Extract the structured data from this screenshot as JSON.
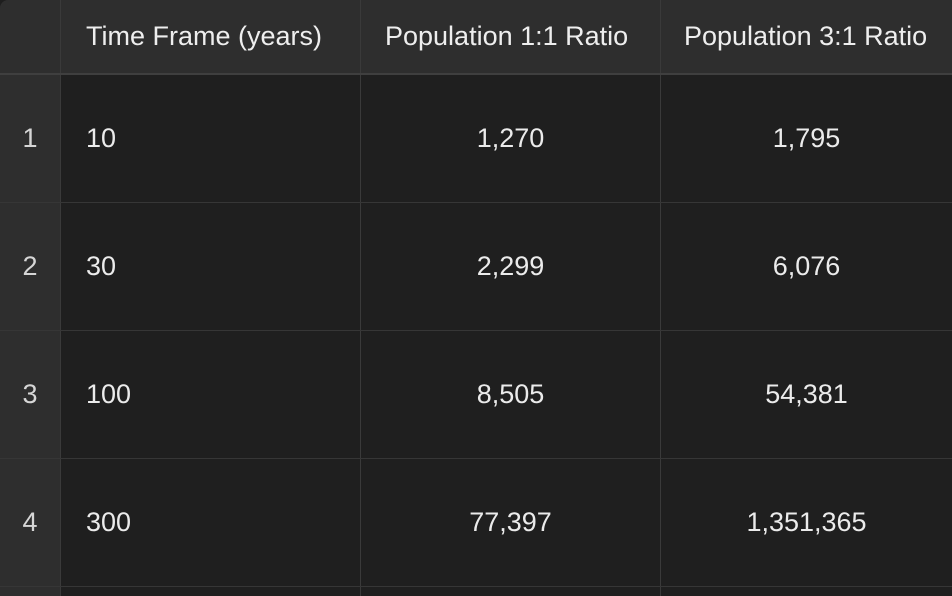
{
  "table": {
    "columns": [
      "",
      "Time Frame (years)",
      "Population 1:1 Ratio",
      "Population 3:1 Ratio"
    ],
    "rows": [
      {
        "index": "1",
        "time": "10",
        "pop_1_1": "1,270",
        "pop_3_1": "1,795"
      },
      {
        "index": "2",
        "time": "30",
        "pop_1_1": "2,299",
        "pop_3_1": "6,076"
      },
      {
        "index": "3",
        "time": "100",
        "pop_1_1": "8,505",
        "pop_3_1": "54,381"
      },
      {
        "index": "4",
        "time": "300",
        "pop_1_1": "77,397",
        "pop_3_1": "1,351,365"
      }
    ]
  }
}
